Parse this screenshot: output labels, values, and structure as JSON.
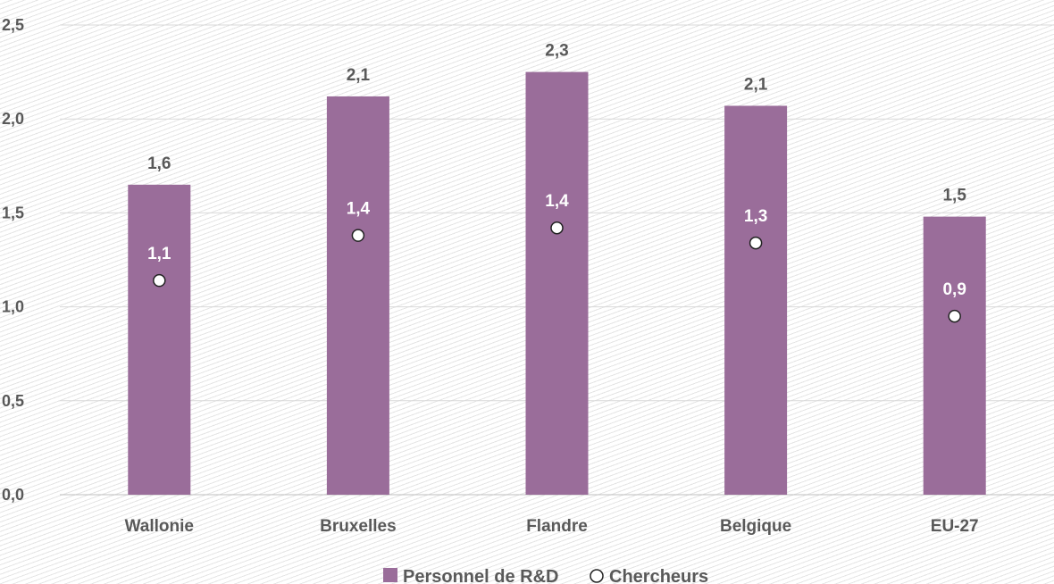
{
  "chart_data": {
    "type": "bar",
    "categories": [
      "Wallonie",
      "Bruxelles",
      "Flandre",
      "Belgique",
      "EU-27"
    ],
    "series": [
      {
        "name": "Personnel de R&D",
        "mark": "bar",
        "values": [
          1.65,
          2.12,
          2.25,
          2.07,
          1.48
        ],
        "labels": [
          "1,6",
          "2,1",
          "2,3",
          "2,1",
          "1,5"
        ],
        "color": "#9a6d9a"
      },
      {
        "name": "Chercheurs",
        "mark": "point",
        "values": [
          1.14,
          1.38,
          1.42,
          1.34,
          0.95
        ],
        "labels": [
          "1,1",
          "1,4",
          "1,4",
          "1,3",
          "0,9"
        ],
        "color": "#ffffff"
      }
    ],
    "ylim": [
      0,
      2.5
    ],
    "yticks": [
      0,
      0.5,
      1.0,
      1.5,
      2.0,
      2.5
    ],
    "ytick_labels": [
      "0,0",
      "0,5",
      "1,0",
      "1,5",
      "2,0",
      "2,5"
    ],
    "grid": true,
    "legend": "bottom-center"
  }
}
